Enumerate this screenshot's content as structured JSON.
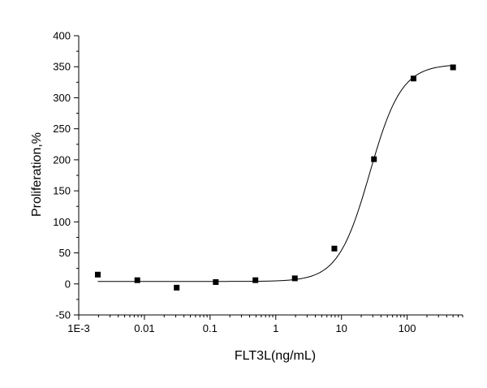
{
  "chart_data": {
    "type": "scatter",
    "title": "",
    "xlabel": "FLT3L(ng/mL)",
    "ylabel": "Proliferation,%",
    "x_scale": "log",
    "xlim": [
      0.001,
      700
    ],
    "ylim": [
      -50,
      400
    ],
    "x_ticks": [
      {
        "value": 0.001,
        "label": "1E-3"
      },
      {
        "value": 0.01,
        "label": "0.01"
      },
      {
        "value": 0.1,
        "label": "0.1"
      },
      {
        "value": 1,
        "label": "1"
      },
      {
        "value": 10,
        "label": "10"
      },
      {
        "value": 100,
        "label": "100"
      }
    ],
    "y_ticks": [
      {
        "value": -50,
        "label": "-50"
      },
      {
        "value": 0,
        "label": "0"
      },
      {
        "value": 50,
        "label": "50"
      },
      {
        "value": 100,
        "label": "100"
      },
      {
        "value": 150,
        "label": "150"
      },
      {
        "value": 200,
        "label": "200"
      },
      {
        "value": 250,
        "label": "250"
      },
      {
        "value": 300,
        "label": "300"
      },
      {
        "value": 350,
        "label": "350"
      },
      {
        "value": 400,
        "label": "400"
      }
    ],
    "grid": false,
    "legend": "none",
    "series": [
      {
        "marker": "square",
        "color": "#000000",
        "points": [
          {
            "x": 0.00195,
            "y": 15
          },
          {
            "x": 0.0078,
            "y": 6
          },
          {
            "x": 0.031,
            "y": -6
          },
          {
            "x": 0.122,
            "y": 3
          },
          {
            "x": 0.49,
            "y": 6
          },
          {
            "x": 1.95,
            "y": 9
          },
          {
            "x": 7.8,
            "y": 57
          },
          {
            "x": 31.25,
            "y": 201
          },
          {
            "x": 125,
            "y": 331
          },
          {
            "x": 500,
            "y": 349
          }
        ]
      }
    ],
    "fit_curve": {
      "model": "4PL",
      "color": "#000000",
      "bottom": 4,
      "top": 354,
      "ec50": 27,
      "hill": 1.8
    }
  }
}
